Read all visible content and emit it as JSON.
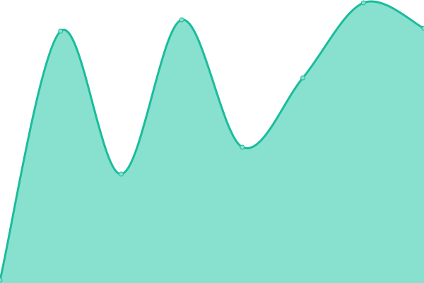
{
  "chart_data": {
    "type": "area",
    "x": [
      0,
      1,
      2,
      3,
      4,
      5,
      6,
      7
    ],
    "values": [
      1,
      89,
      38.5,
      93,
      48,
      72.5,
      99,
      90
    ],
    "ylim": [
      0,
      100
    ],
    "grid": false,
    "smooth": true,
    "show_points": true,
    "colors": {
      "line": "#1abc9c",
      "fill": "#88e0cf",
      "point_fill": "#88e0cf"
    }
  }
}
